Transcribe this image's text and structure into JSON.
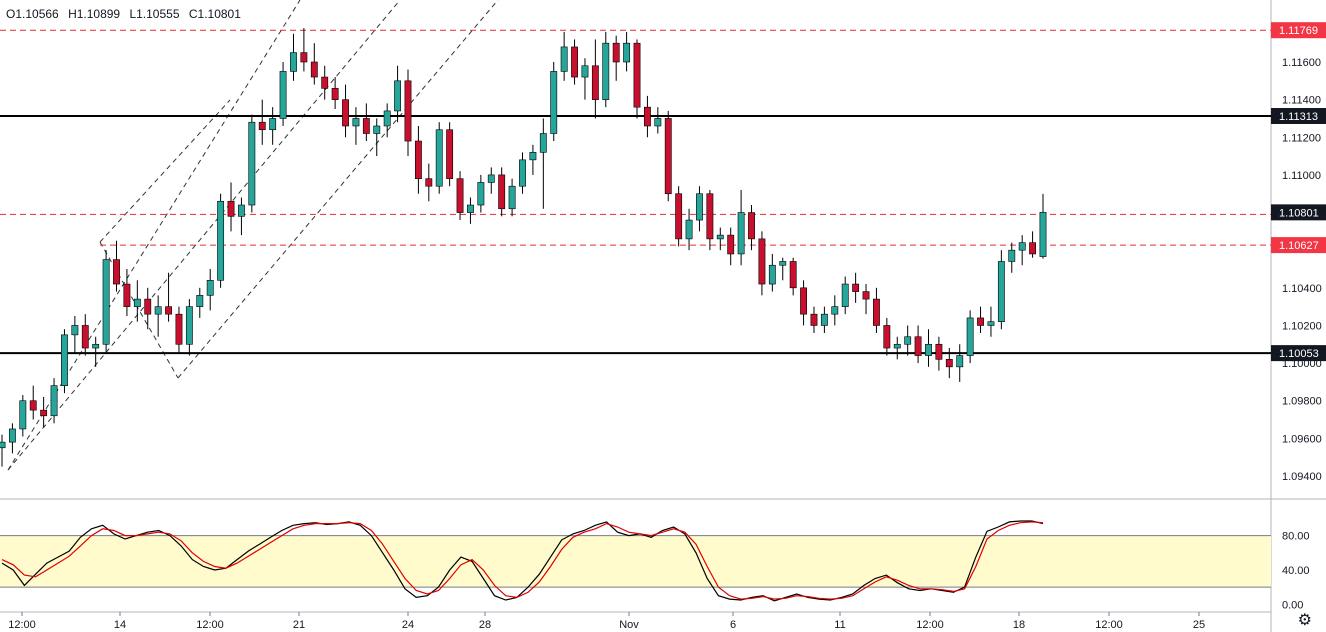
{
  "ohlc": {
    "o": "O1.10566",
    "h": "H1.10899",
    "l": "L1.10555",
    "c": "C1.10801"
  },
  "colors": {
    "up": "#26a69a",
    "upFill": "#26a69a",
    "down": "#c8102e",
    "osc_k": "#000000",
    "osc_d": "#e00000",
    "band": "#fffbcc",
    "level_red": "#e03030",
    "level_black": "#000000"
  },
  "chart_data": [
    {
      "type": "candlestick",
      "y_axis": {
        "min": 1.093,
        "max": 1.1192,
        "ticks": [
          "1.09400",
          "1.09600",
          "1.09800",
          "1.10000",
          "1.10200",
          "1.10400",
          "1.11000",
          "1.11200",
          "1.11400",
          "1.11600"
        ]
      },
      "x_axis_ticks": [
        "12:00",
        "14",
        "12:00",
        "21",
        "24",
        "28",
        "Nov",
        "6",
        "11",
        "12:00",
        "18",
        "12:00",
        "25"
      ],
      "horizontal_levels": [
        {
          "value": 1.11769,
          "label": "1.11769",
          "style": "red-dashed"
        },
        {
          "value": 1.11313,
          "label": "1.11313",
          "style": "black-solid"
        },
        {
          "value": 1.1079,
          "label": "",
          "style": "red-dashed"
        },
        {
          "value": 1.10627,
          "label": "1.10627",
          "style": "red-dashed"
        },
        {
          "value": 1.10053,
          "label": "1.10053",
          "style": "black-solid"
        }
      ],
      "last_price": {
        "value": 1.10801,
        "label": "1.10801"
      },
      "candles": [
        [
          1.0955,
          1.0962,
          1.0945,
          1.0958
        ],
        [
          1.0958,
          1.0968,
          1.0952,
          1.0965
        ],
        [
          1.0965,
          1.0983,
          1.0961,
          1.098
        ],
        [
          1.098,
          1.0988,
          1.097,
          1.0975
        ],
        [
          1.0975,
          1.0982,
          1.0966,
          1.0972
        ],
        [
          1.0972,
          1.0992,
          1.0968,
          1.0988
        ],
        [
          1.0988,
          1.1018,
          1.0984,
          1.1015
        ],
        [
          1.1015,
          1.1025,
          1.1005,
          1.102
        ],
        [
          1.102,
          1.1026,
          1.1004,
          1.1008
        ],
        [
          1.1008,
          1.1014,
          1.0998,
          1.101
        ],
        [
          1.101,
          1.106,
          1.1006,
          1.1055
        ],
        [
          1.1055,
          1.1065,
          1.1038,
          1.1042
        ],
        [
          1.1042,
          1.105,
          1.1025,
          1.103
        ],
        [
          1.103,
          1.1044,
          1.1022,
          1.1034
        ],
        [
          1.1034,
          1.104,
          1.1018,
          1.1026
        ],
        [
          1.1026,
          1.1036,
          1.1014,
          1.103
        ],
        [
          1.103,
          1.1048,
          1.1022,
          1.1026
        ],
        [
          1.1026,
          1.103,
          1.1005,
          1.101
        ],
        [
          1.101,
          1.1034,
          1.1004,
          1.103
        ],
        [
          1.103,
          1.104,
          1.1024,
          1.1036
        ],
        [
          1.1036,
          1.105,
          1.1028,
          1.1044
        ],
        [
          1.1044,
          1.109,
          1.104,
          1.1086
        ],
        [
          1.1086,
          1.1096,
          1.107,
          1.1078
        ],
        [
          1.1078,
          1.1088,
          1.1068,
          1.1084
        ],
        [
          1.1084,
          1.1132,
          1.108,
          1.1128
        ],
        [
          1.1128,
          1.114,
          1.1116,
          1.1124
        ],
        [
          1.1124,
          1.1136,
          1.1116,
          1.113
        ],
        [
          1.113,
          1.116,
          1.1126,
          1.1155
        ],
        [
          1.1155,
          1.1175,
          1.115,
          1.1165
        ],
        [
          1.1165,
          1.1178,
          1.1155,
          1.116
        ],
        [
          1.116,
          1.117,
          1.1148,
          1.1152
        ],
        [
          1.1152,
          1.1158,
          1.114,
          1.1146
        ],
        [
          1.1146,
          1.1152,
          1.1135,
          1.114
        ],
        [
          1.114,
          1.1148,
          1.112,
          1.1126
        ],
        [
          1.1126,
          1.1136,
          1.1116,
          1.113
        ],
        [
          1.113,
          1.1138,
          1.1118,
          1.1122
        ],
        [
          1.1122,
          1.113,
          1.111,
          1.1126
        ],
        [
          1.1126,
          1.1138,
          1.112,
          1.1134
        ],
        [
          1.1134,
          1.1158,
          1.1128,
          1.115
        ],
        [
          1.115,
          1.1156,
          1.111,
          1.1118
        ],
        [
          1.1118,
          1.1126,
          1.109,
          1.1098
        ],
        [
          1.1098,
          1.1106,
          1.1086,
          1.1094
        ],
        [
          1.1094,
          1.1128,
          1.109,
          1.1124
        ],
        [
          1.1124,
          1.1128,
          1.1094,
          1.1098
        ],
        [
          1.1098,
          1.1102,
          1.1076,
          1.108
        ],
        [
          1.108,
          1.1088,
          1.1074,
          1.1084
        ],
        [
          1.1084,
          1.11,
          1.108,
          1.1096
        ],
        [
          1.1096,
          1.1104,
          1.109,
          1.11
        ],
        [
          1.11,
          1.1104,
          1.1078,
          1.1082
        ],
        [
          1.1082,
          1.1098,
          1.1078,
          1.1094
        ],
        [
          1.1094,
          1.1112,
          1.109,
          1.1108
        ],
        [
          1.1108,
          1.1116,
          1.11,
          1.1112
        ],
        [
          1.1112,
          1.113,
          1.1082,
          1.1122
        ],
        [
          1.1122,
          1.116,
          1.1118,
          1.1155
        ],
        [
          1.1155,
          1.1176,
          1.115,
          1.1168
        ],
        [
          1.1168,
          1.1172,
          1.1148,
          1.1152
        ],
        [
          1.1152,
          1.1162,
          1.114,
          1.1158
        ],
        [
          1.1158,
          1.1172,
          1.113,
          1.114
        ],
        [
          1.114,
          1.1176,
          1.1136,
          1.117
        ],
        [
          1.117,
          1.1174,
          1.115,
          1.116
        ],
        [
          1.116,
          1.1176,
          1.1155,
          1.117
        ],
        [
          1.117,
          1.1172,
          1.113,
          1.1136
        ],
        [
          1.1136,
          1.1142,
          1.112,
          1.1126
        ],
        [
          1.1126,
          1.1136,
          1.1122,
          1.113
        ],
        [
          1.113,
          1.1134,
          1.1086,
          1.109
        ],
        [
          1.109,
          1.1094,
          1.1062,
          1.1066
        ],
        [
          1.1066,
          1.1082,
          1.106,
          1.1076
        ],
        [
          1.1076,
          1.1094,
          1.107,
          1.109
        ],
        [
          1.109,
          1.1092,
          1.106,
          1.1066
        ],
        [
          1.1066,
          1.1072,
          1.106,
          1.1068
        ],
        [
          1.1068,
          1.1072,
          1.1052,
          1.1058
        ],
        [
          1.1058,
          1.1092,
          1.1052,
          1.108
        ],
        [
          1.108,
          1.1084,
          1.106,
          1.1066
        ],
        [
          1.1066,
          1.107,
          1.1036,
          1.1042
        ],
        [
          1.1042,
          1.1058,
          1.1038,
          1.1052
        ],
        [
          1.1052,
          1.1056,
          1.1044,
          1.1054
        ],
        [
          1.1054,
          1.1056,
          1.1036,
          1.104
        ],
        [
          1.104,
          1.1044,
          1.102,
          1.1026
        ],
        [
          1.1026,
          1.103,
          1.1016,
          1.102
        ],
        [
          1.102,
          1.103,
          1.1016,
          1.1026
        ],
        [
          1.1026,
          1.1036,
          1.102,
          1.103
        ],
        [
          1.103,
          1.1046,
          1.1026,
          1.1042
        ],
        [
          1.1042,
          1.1048,
          1.1032,
          1.1038
        ],
        [
          1.1038,
          1.1042,
          1.1026,
          1.1034
        ],
        [
          1.1034,
          1.104,
          1.1016,
          1.102
        ],
        [
          1.102,
          1.1024,
          1.1004,
          1.1008
        ],
        [
          1.1008,
          1.1014,
          1.1002,
          1.101
        ],
        [
          1.101,
          1.102,
          1.1004,
          1.1014
        ],
        [
          1.1014,
          1.102,
          1.1,
          1.1004
        ],
        [
          1.1004,
          1.1018,
          1.0998,
          1.101
        ],
        [
          1.101,
          1.1014,
          1.0996,
          1.1002
        ],
        [
          1.1002,
          1.1008,
          1.0992,
          1.0998
        ],
        [
          1.0998,
          1.101,
          1.099,
          1.1004
        ],
        [
          1.1004,
          1.1028,
          1.1,
          1.1024
        ],
        [
          1.1024,
          1.103,
          1.1016,
          1.102
        ],
        [
          1.102,
          1.103,
          1.1014,
          1.1022
        ],
        [
          1.1022,
          1.106,
          1.1018,
          1.1054
        ],
        [
          1.1054,
          1.1064,
          1.1048,
          1.106
        ],
        [
          1.106,
          1.1068,
          1.1052,
          1.1064
        ],
        [
          1.1064,
          1.107,
          1.1056,
          1.1058
        ],
        [
          1.10566,
          1.10899,
          1.10555,
          1.10801
        ]
      ]
    },
    {
      "type": "line",
      "name": "oscillator",
      "y_axis": {
        "min": -2,
        "max": 118,
        "ticks": [
          "80.00",
          "40.00",
          "0.00"
        ]
      },
      "band": [
        20,
        80
      ],
      "series": [
        {
          "values": [
            48,
            40,
            22,
            35,
            48,
            55,
            62,
            78,
            88,
            92,
            82,
            76,
            80,
            84,
            86,
            80,
            68,
            52,
            44,
            40,
            42,
            52,
            62,
            70,
            78,
            86,
            92,
            94,
            95,
            93,
            94,
            96,
            92,
            80,
            60,
            40,
            18,
            8,
            10,
            20,
            40,
            55,
            50,
            30,
            10,
            5,
            8,
            20,
            35,
            55,
            75,
            82,
            86,
            92,
            96,
            84,
            80,
            82,
            78,
            86,
            90,
            82,
            60,
            30,
            10,
            6,
            5,
            8,
            10,
            4,
            8,
            12,
            8,
            6,
            5,
            8,
            12,
            22,
            30,
            34,
            25,
            18,
            16,
            18,
            16,
            14,
            20,
            55,
            85,
            90,
            96,
            97,
            97,
            94
          ]
        },
        {
          "values": [
            52,
            46,
            34,
            32,
            40,
            48,
            56,
            68,
            80,
            88,
            86,
            80,
            80,
            82,
            84,
            82,
            74,
            60,
            50,
            44,
            42,
            48,
            56,
            64,
            72,
            80,
            88,
            92,
            94,
            94,
            94,
            95,
            94,
            86,
            70,
            50,
            30,
            16,
            12,
            16,
            30,
            46,
            52,
            40,
            22,
            10,
            8,
            14,
            26,
            44,
            64,
            78,
            84,
            88,
            94,
            90,
            84,
            82,
            80,
            84,
            88,
            84,
            70,
            44,
            20,
            10,
            6,
            7,
            9,
            6,
            7,
            10,
            9,
            7,
            6,
            7,
            10,
            18,
            26,
            32,
            28,
            22,
            18,
            18,
            17,
            15,
            18,
            44,
            76,
            86,
            92,
            95,
            96,
            95
          ]
        }
      ]
    }
  ]
}
